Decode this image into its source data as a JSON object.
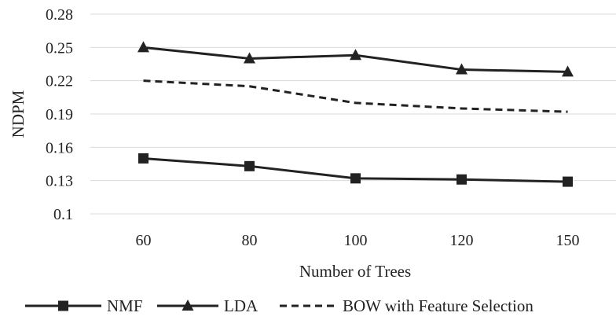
{
  "chart_data": {
    "type": "line",
    "title": "",
    "xlabel": "Number of Trees",
    "ylabel": "NDPM",
    "categories": [
      "60",
      "80",
      "100",
      "120",
      "150"
    ],
    "ylim": [
      0.1,
      0.28
    ],
    "yticks": [
      "0.1",
      "0.13",
      "0.16",
      "0.19",
      "0.22",
      "0.25",
      "0.28"
    ],
    "grid": "horizontal",
    "legend_position": "bottom",
    "series": [
      {
        "name": "NMF",
        "values": [
          0.15,
          0.143,
          0.132,
          0.131,
          0.129
        ],
        "marker": "square",
        "dash": "solid",
        "color": "#222222"
      },
      {
        "name": "LDA",
        "values": [
          0.25,
          0.24,
          0.243,
          0.23,
          0.228
        ],
        "marker": "triangle",
        "dash": "solid",
        "color": "#222222"
      },
      {
        "name": "BOW with Feature Selection",
        "values": [
          0.22,
          0.215,
          0.2,
          0.195,
          0.192
        ],
        "marker": "none",
        "dash": "dashed",
        "color": "#222222"
      }
    ]
  }
}
